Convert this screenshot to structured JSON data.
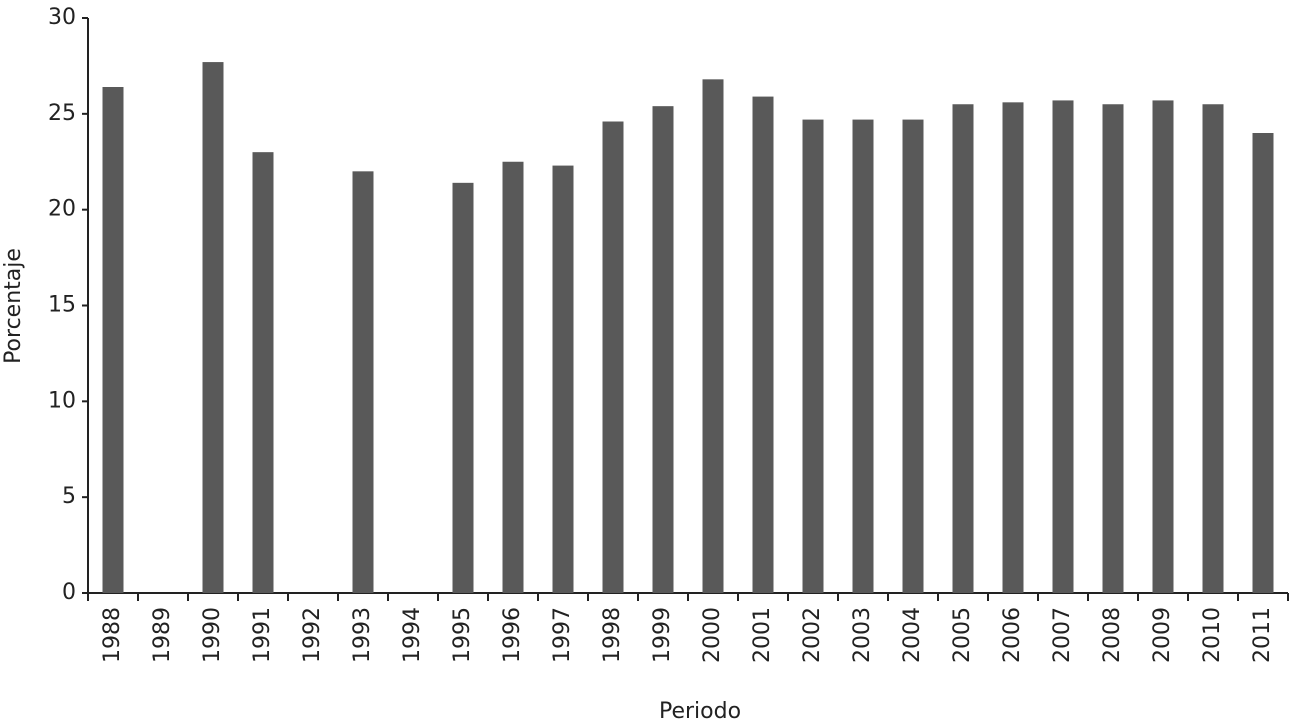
{
  "chart_data": {
    "type": "bar",
    "categories": [
      "1988",
      "1989",
      "1990",
      "1991",
      "1992",
      "1993",
      "1994",
      "1995",
      "1996",
      "1997",
      "1998",
      "1999",
      "2000",
      "2001",
      "2002",
      "2003",
      "2004",
      "2005",
      "2006",
      "2007",
      "2008",
      "2009",
      "2010",
      "2011"
    ],
    "values": [
      26.4,
      null,
      27.7,
      23.0,
      null,
      22.0,
      null,
      21.4,
      22.5,
      22.3,
      24.6,
      25.4,
      26.8,
      25.9,
      24.7,
      24.7,
      24.7,
      25.5,
      25.6,
      25.7,
      25.5,
      25.7,
      25.5,
      24.0
    ],
    "color": "#595959",
    "x_label": "Periodo",
    "y_label": "Porcentaje",
    "ylim": [
      0,
      30
    ],
    "yticks": [
      0,
      5,
      10,
      15,
      20,
      25,
      30
    ],
    "grid": false
  }
}
